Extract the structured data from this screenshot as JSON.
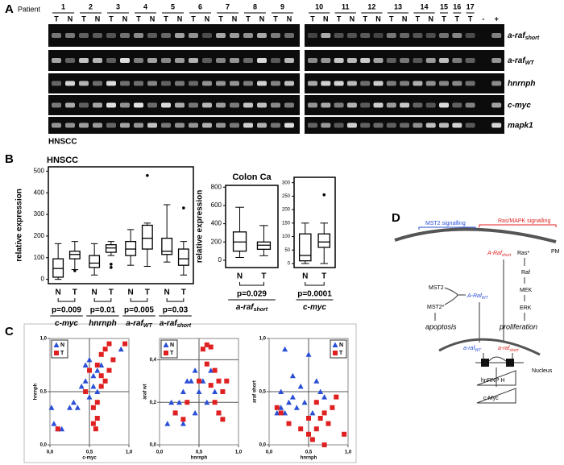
{
  "panel_a": {
    "letter": "A",
    "patient_label": "Patient",
    "patients": [
      {
        "label": "1",
        "lanes": [
          "T",
          "N"
        ]
      },
      {
        "label": "2",
        "lanes": [
          "T",
          "N"
        ]
      },
      {
        "label": "3",
        "lanes": [
          "T",
          "N"
        ]
      },
      {
        "label": "4",
        "lanes": [
          "T",
          "N"
        ]
      },
      {
        "label": "5",
        "lanes": [
          "T",
          "N"
        ]
      },
      {
        "label": "6",
        "lanes": [
          "T",
          "N"
        ]
      },
      {
        "label": "7",
        "lanes": [
          "T",
          "N"
        ]
      },
      {
        "label": "8",
        "lanes": [
          "T",
          "N"
        ]
      },
      {
        "label": "9",
        "lanes": [
          "T",
          "N"
        ]
      },
      {
        "label": "10",
        "lanes": [
          "T",
          "N"
        ]
      },
      {
        "label": "11",
        "lanes": [
          "T",
          "N"
        ]
      },
      {
        "label": "12",
        "lanes": [
          "T",
          "N"
        ]
      },
      {
        "label": "13",
        "lanes": [
          "T",
          "N"
        ]
      },
      {
        "label": "14",
        "lanes": [
          "T",
          "N"
        ]
      },
      {
        "label": "15",
        "lanes": [
          "T"
        ]
      },
      {
        "label": "16",
        "lanes": [
          "T"
        ]
      },
      {
        "label": "17",
        "lanes": [
          "T"
        ]
      }
    ],
    "controls": [
      "-",
      "+"
    ],
    "genes": [
      {
        "text": "a-raf",
        "sub": "short"
      },
      {
        "text": "a-raf",
        "sub": "WT"
      },
      {
        "text": "hnrnph"
      },
      {
        "text": "c-myc"
      },
      {
        "text": "mapk1"
      }
    ],
    "cohort": "HNSCC"
  },
  "panel_b": {
    "letter": "B"
  },
  "panel_c": {
    "letter": "C"
  },
  "chart_data": [
    {
      "type": "box",
      "title": "HNSCC",
      "y_label": "relative expression",
      "ylim": [
        -20,
        520
      ],
      "yticks": [
        0,
        100,
        200,
        300,
        400,
        500
      ],
      "groups": [
        {
          "label": {
            "text": "c-myc"
          },
          "pvalue": "p=0.009",
          "boxes": [
            {
              "name": "N",
              "min": 0,
              "q1": 10,
              "median": 50,
              "q3": 95,
              "max": 165,
              "outliers": []
            },
            {
              "name": "T",
              "min": 45,
              "q1": 95,
              "median": 115,
              "q3": 130,
              "max": 175,
              "outliers": [
                40
              ]
            }
          ]
        },
        {
          "label": {
            "text": "hnrnph"
          },
          "pvalue": "p=0.01",
          "boxes": [
            {
              "name": "N",
              "min": 20,
              "q1": 55,
              "median": 75,
              "q3": 110,
              "max": 165,
              "outliers": []
            },
            {
              "name": "T",
              "min": 110,
              "q1": 125,
              "median": 145,
              "q3": 160,
              "max": 175,
              "outliers": [
                70,
                55
              ]
            }
          ]
        },
        {
          "label": {
            "text": "a-raf",
            "sub": "WT"
          },
          "pvalue": "p=0.005",
          "boxes": [
            {
              "name": "N",
              "min": 65,
              "q1": 110,
              "median": 140,
              "q3": 175,
              "max": 230,
              "outliers": []
            },
            {
              "name": "T",
              "min": 60,
              "q1": 140,
              "median": 190,
              "q3": 250,
              "max": 260,
              "outliers": [
                480
              ]
            }
          ]
        },
        {
          "label": {
            "text": "a-raf",
            "sub": "short"
          },
          "pvalue": "p=0.03",
          "boxes": [
            {
              "name": "N",
              "min": 80,
              "q1": 115,
              "median": 130,
              "q3": 190,
              "max": 345,
              "outliers": []
            },
            {
              "name": "T",
              "min": 20,
              "q1": 65,
              "median": 95,
              "q3": 140,
              "max": 175,
              "outliers": [
                330
              ]
            }
          ]
        }
      ]
    },
    {
      "type": "box",
      "title": "Colon Ca",
      "y_label": "relative expression",
      "ylim": [
        -80,
        820
      ],
      "yticks": [
        0,
        200,
        400,
        600,
        800
      ],
      "groups": [
        {
          "label": {
            "text": "a-raf",
            "sub": "short"
          },
          "pvalue": "p=0.029",
          "boxes": [
            {
              "name": "N",
              "min": 30,
              "q1": 100,
              "median": 200,
              "q3": 310,
              "max": 580,
              "outliers": []
            },
            {
              "name": "T",
              "min": 50,
              "q1": 120,
              "median": 165,
              "q3": 200,
              "max": 380,
              "outliers": []
            }
          ]
        }
      ]
    },
    {
      "type": "box",
      "ylim": [
        -15,
        320
      ],
      "yticks": [
        0,
        50,
        100,
        150,
        200,
        250,
        300
      ],
      "groups": [
        {
          "label": {
            "text": "c-myc"
          },
          "pvalue": "p=0.0001",
          "boxes": [
            {
              "name": "N",
              "min": 0,
              "q1": 10,
              "median": 30,
              "q3": 110,
              "max": 150,
              "outliers": []
            },
            {
              "name": "T",
              "min": 0,
              "q1": 60,
              "median": 80,
              "q3": 110,
              "max": 150,
              "outliers": [
                255
              ]
            }
          ]
        }
      ]
    },
    {
      "type": "scatter",
      "x_label": "c-myc",
      "y_label": "hnrnph",
      "legend": "upper left",
      "xlim": [
        0,
        1
      ],
      "ylim": [
        0,
        1
      ],
      "xticks": [
        {
          "value": 0,
          "label": "0,0"
        },
        {
          "value": 0.5,
          "label": "0,5"
        },
        {
          "value": 1,
          "label": "1,0"
        }
      ],
      "yticks": [
        {
          "value": 0,
          "label": "0,0"
        },
        {
          "value": 0.5,
          "label": "0,5"
        },
        {
          "value": 1,
          "label": "1,0"
        }
      ],
      "guides": {
        "x": [
          0.5
        ],
        "y": [
          0.5
        ]
      },
      "series": [
        {
          "name": "N",
          "color": "#2a4fd6",
          "marker": "triangle",
          "x": [
            0.05,
            0.1,
            0.45,
            0.5,
            0.55,
            0.6,
            0.4,
            0.35,
            0.3,
            0.25,
            0.55,
            0.6,
            0.65,
            0.9,
            0.02,
            0.15,
            0.5,
            0.45
          ],
          "y": [
            0.2,
            0.15,
            0.75,
            0.8,
            0.65,
            0.7,
            0.55,
            0.35,
            0.4,
            0.35,
            0.55,
            0.5,
            0.75,
            0.9,
            0.35,
            0.15,
            0.45,
            0.6
          ]
        },
        {
          "name": "T",
          "color": "#e02020",
          "marker": "square",
          "x": [
            0.6,
            0.65,
            0.7,
            0.75,
            0.8,
            0.6,
            0.55,
            0.6,
            0.55,
            0.65,
            0.7,
            0.95,
            0.45,
            0.65,
            0.1,
            0.58,
            0.75,
            0.5
          ],
          "y": [
            0.75,
            0.85,
            0.9,
            0.95,
            0.8,
            0.4,
            0.35,
            0.25,
            0.2,
            0.55,
            0.6,
            0.95,
            0.5,
            0.65,
            0.15,
            0.15,
            0.7,
            0.7
          ]
        }
      ]
    },
    {
      "type": "scatter",
      "x_label": "hnrnph",
      "y_label": "araf wt",
      "legend": "upper left",
      "xlim": [
        0,
        1
      ],
      "ylim": [
        0,
        0.5
      ],
      "xticks": [
        {
          "value": 0,
          "label": "0,0"
        },
        {
          "value": 0.5,
          "label": "0,5"
        },
        {
          "value": 1,
          "label": "1,0"
        }
      ],
      "yticks": [
        {
          "value": 0,
          "label": "0,0"
        },
        {
          "value": 0.2,
          "label": "0,2"
        },
        {
          "value": 0.4,
          "label": "0,4"
        }
      ],
      "guides": {
        "x": [
          0.5
        ],
        "y": [
          0.2,
          0.4
        ]
      },
      "series": [
        {
          "name": "N",
          "color": "#2a4fd6",
          "marker": "triangle",
          "x": [
            0.1,
            0.15,
            0.2,
            0.3,
            0.35,
            0.4,
            0.45,
            0.5,
            0.55,
            0.6,
            0.7,
            0.75,
            0.25,
            0.45,
            0.65,
            0.3
          ],
          "y": [
            0.1,
            0.2,
            0.15,
            0.25,
            0.3,
            0.3,
            0.35,
            0.25,
            0.3,
            0.2,
            0.25,
            0.15,
            0.2,
            0.15,
            0.35,
            0.1
          ]
        },
        {
          "name": "T",
          "color": "#e02020",
          "marker": "square",
          "x": [
            0.55,
            0.6,
            0.65,
            0.6,
            0.7,
            0.75,
            0.8,
            0.7,
            0.75,
            0.8,
            0.5,
            0.65,
            0.85,
            0.35,
            0.3,
            0.2
          ],
          "y": [
            0.45,
            0.47,
            0.46,
            0.38,
            0.35,
            0.3,
            0.25,
            0.2,
            0.15,
            0.12,
            0.3,
            0.28,
            0.3,
            0.2,
            0.12,
            0.15
          ]
        }
      ]
    },
    {
      "type": "scatter",
      "x_label": "hnrnph",
      "y_label": "araf short",
      "legend": "upper right",
      "xlim": [
        0,
        1
      ],
      "ylim": [
        0,
        1
      ],
      "xticks": [
        {
          "value": 0,
          "label": "0,0"
        },
        {
          "value": 0.5,
          "label": "0,5"
        },
        {
          "value": 1,
          "label": "1,0"
        }
      ],
      "yticks": [
        {
          "value": 0,
          "label": "0,0"
        },
        {
          "value": 0.5,
          "label": "0,5"
        },
        {
          "value": 1,
          "label": "1,0"
        }
      ],
      "guides": {
        "x": [
          0.5
        ],
        "y": [
          0.5
        ]
      },
      "series": [
        {
          "name": "N",
          "color": "#2a4fd6",
          "marker": "triangle",
          "x": [
            0.1,
            0.15,
            0.2,
            0.25,
            0.3,
            0.35,
            0.4,
            0.45,
            0.5,
            0.2,
            0.6,
            0.65,
            0.7,
            0.55,
            0.3,
            0.15
          ],
          "y": [
            0.3,
            0.35,
            0.3,
            0.4,
            0.45,
            0.35,
            0.55,
            0.4,
            0.85,
            0.9,
            0.6,
            0.5,
            0.45,
            0.3,
            0.65,
            0.5
          ]
        },
        {
          "name": "T",
          "color": "#e02020",
          "marker": "square",
          "x": [
            0.1,
            0.15,
            0.25,
            0.4,
            0.5,
            0.55,
            0.6,
            0.65,
            0.7,
            0.75,
            0.8,
            0.85,
            0.9,
            0.85,
            0.6,
            0.95,
            0.5,
            0.7
          ],
          "y": [
            0.35,
            0.3,
            0.2,
            0.15,
            0.1,
            0.05,
            0.15,
            0.25,
            0.3,
            0.2,
            0.35,
            0.45,
            0.95,
            0.85,
            0.4,
            0.1,
            0.25,
            0
          ]
        }
      ]
    }
  ],
  "panel_d": {
    "letter": "D",
    "mst2_signalling": "MST2 signalling",
    "ras_signalling": "Ras/MAPK signalling",
    "pm": "PM",
    "araf_short_protein": {
      "text": "A-Raf",
      "sub": "short"
    },
    "ras": "Ras*",
    "raf": "Raf",
    "mek": "MEK",
    "erk": "ERK",
    "mst2": "MST2",
    "mst2_active": "MST2*",
    "araf_wt_protein": {
      "text": "A-Raf",
      "sub": "WT"
    },
    "apoptosis": "apoptosis",
    "proliferation": "proliferation",
    "araf_wt_mrna": {
      "text": "a-raf",
      "sub": "WT"
    },
    "araf_short_mrna": {
      "text": "a-raf",
      "sub": "short"
    },
    "nucleus": "Nucleus",
    "hnrnph": "hnRNP H",
    "cmyc": "c-Myc"
  }
}
